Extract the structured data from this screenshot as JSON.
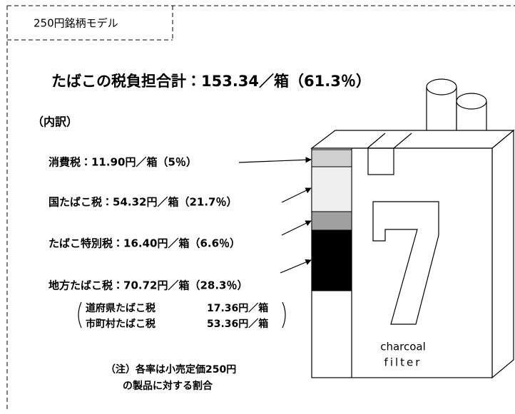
{
  "tab": "250円銘柄モデル",
  "title": "たばこの税負担合計：153.34／箱（61.3％）",
  "breakdown_heading": "（内訳）",
  "items": [
    "消費税：11.90円／箱（5％）",
    "国たばこ税：54.32円／箱（21.7％）",
    "たばこ特別税：16.40円／箱（6.6％）",
    "地方たばこ税：70.72円／箱（28.3％）"
  ],
  "sub_items": [
    [
      "道府県たばこ税",
      "17.36円／箱"
    ],
    [
      "市町村たばこ税",
      "53.36円／箱"
    ]
  ],
  "note": [
    "（注）各率は小売定価250円",
    "の製品に対する割合"
  ],
  "pack_label": [
    "charcoal",
    "filter"
  ]
}
